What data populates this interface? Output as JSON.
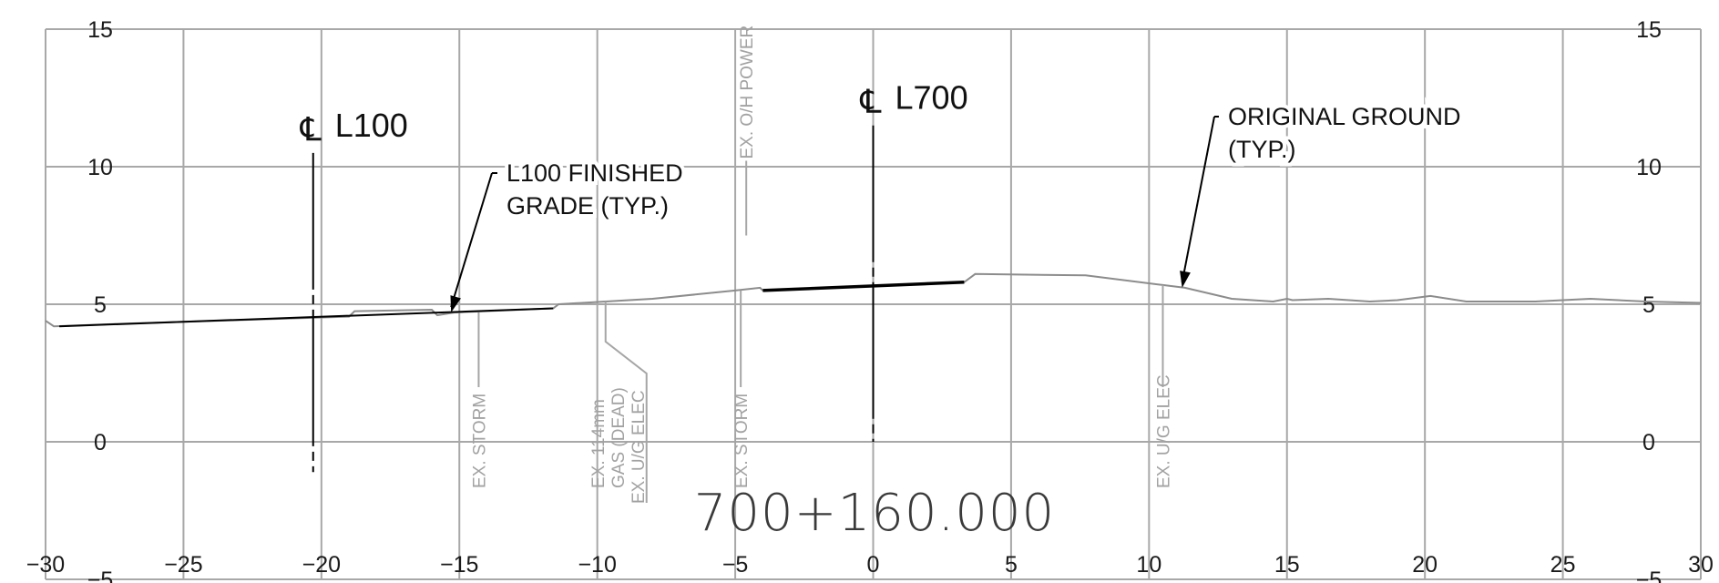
{
  "chart_data": {
    "type": "diagram",
    "xlim": [
      -30,
      30
    ],
    "ylim": [
      -5,
      15
    ],
    "x_ticks": [
      -30,
      -25,
      -20,
      -15,
      -10,
      -5,
      0,
      5,
      10,
      15,
      20,
      25,
      30
    ],
    "x_tick_labels": [
      "−30",
      "−25",
      "−20",
      "−15",
      "−10",
      "−5",
      "0",
      "5",
      "10",
      "15",
      "20",
      "25",
      "30"
    ],
    "y_ticks": [
      -5,
      0,
      5,
      10,
      15
    ],
    "y_tick_labels": [
      "−5",
      "0",
      "5",
      "10",
      "15"
    ],
    "station_label": "700+160.000",
    "centerlines": [
      {
        "symbol": "℄",
        "name": "L100",
        "x": -20.3,
        "y_top": 10.5,
        "y_bottom": -1.1
      },
      {
        "symbol": "℄",
        "name": "L700",
        "x": 0,
        "y_top": 11.5,
        "y_bottom": 0
      }
    ],
    "original_ground": [
      [
        -30,
        4.4
      ],
      [
        -29.7,
        4.2
      ],
      [
        -27,
        4.3
      ],
      [
        -19,
        4.55
      ],
      [
        -18.8,
        4.75
      ],
      [
        -16,
        4.8
      ],
      [
        -15.8,
        4.6
      ],
      [
        -15.2,
        4.7
      ],
      [
        -11.6,
        4.85
      ],
      [
        -11.4,
        5.0
      ],
      [
        -8,
        5.2
      ],
      [
        -5,
        5.5
      ],
      [
        -4.1,
        5.6
      ],
      [
        -4.0,
        5.5
      ],
      [
        3.3,
        5.8
      ],
      [
        3.7,
        6.1
      ],
      [
        7.7,
        6.05
      ],
      [
        10.5,
        5.7
      ],
      [
        11.3,
        5.6
      ],
      [
        13,
        5.2
      ],
      [
        14.5,
        5.1
      ],
      [
        15,
        5.2
      ],
      [
        15.2,
        5.15
      ],
      [
        16.5,
        5.2
      ],
      [
        18,
        5.1
      ],
      [
        19,
        5.15
      ],
      [
        20.2,
        5.3
      ],
      [
        21.5,
        5.1
      ],
      [
        24,
        5.1
      ],
      [
        26,
        5.2
      ],
      [
        28,
        5.1
      ],
      [
        30,
        5.05
      ]
    ],
    "finished_grades": [
      {
        "name": "L100",
        "points": [
          [
            -29.5,
            4.2
          ],
          [
            -11.6,
            4.85
          ]
        ]
      },
      {
        "name": "L700",
        "points": [
          [
            -4.0,
            5.5
          ],
          [
            3.3,
            5.8
          ]
        ]
      }
    ],
    "callouts": [
      {
        "lines": [
          "L100 FINISHED",
          "GRADE (TYP.)"
        ],
        "target": [
          -15.3,
          4.7
        ]
      },
      {
        "lines": [
          "ORIGINAL GROUND",
          "(TYP.)"
        ],
        "target": [
          11.2,
          5.6
        ]
      }
    ],
    "utilities": [
      {
        "lines": [
          "EX. O/H POWER"
        ],
        "x": -4.6,
        "y": 7.5,
        "position": "above"
      },
      {
        "lines": [
          "EX. STORM"
        ],
        "x": -14.3,
        "y": 4.7,
        "position": "below"
      },
      {
        "lines": [
          "EX. 114mm",
          "GAS (DEAD)",
          "EX. U/G ELEC"
        ],
        "x": -9.7,
        "y": 5.1,
        "position": "below"
      },
      {
        "lines": [
          "EX. STORM"
        ],
        "x": -4.8,
        "y": 5.5,
        "position": "below"
      },
      {
        "lines": [
          "EX. U/G ELEC"
        ],
        "x": 10.5,
        "y": 5.7,
        "position": "below"
      }
    ]
  }
}
